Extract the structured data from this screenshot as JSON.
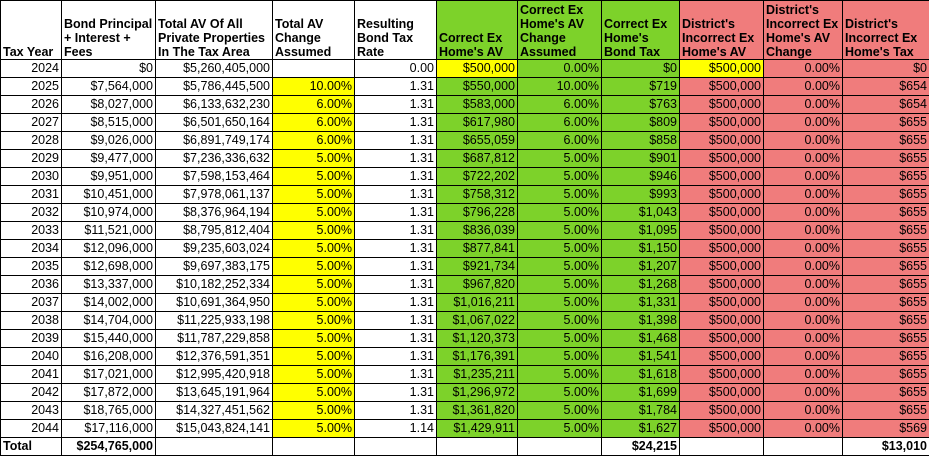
{
  "headers": [
    "Tax Year",
    "Bond Principal + Interest + Fees",
    "Total AV Of All Private Properties In The Tax Area",
    "Total AV Change Assumed",
    "Resulting Bond Tax Rate",
    "Correct Ex Home's AV",
    "Correct Ex Home's AV Change Assumed",
    "Correct Ex Home's Bond Tax",
    "District's Incorrect Ex Home's AV",
    "District's Incorrect Ex Home's AV Change",
    "District's Incorrect Ex Home's Tax"
  ],
  "rows": [
    [
      "2024",
      "$0",
      "$5,260,405,000",
      "",
      "0.00",
      "$500,000",
      "0.00%",
      "$0",
      "$500,000",
      "0.00%",
      "$0"
    ],
    [
      "2025",
      "$7,564,000",
      "$5,786,445,500",
      "10.00%",
      "1.31",
      "$550,000",
      "10.00%",
      "$719",
      "$500,000",
      "0.00%",
      "$654"
    ],
    [
      "2026",
      "$8,027,000",
      "$6,133,632,230",
      "6.00%",
      "1.31",
      "$583,000",
      "6.00%",
      "$763",
      "$500,000",
      "0.00%",
      "$654"
    ],
    [
      "2027",
      "$8,515,000",
      "$6,501,650,164",
      "6.00%",
      "1.31",
      "$617,980",
      "6.00%",
      "$809",
      "$500,000",
      "0.00%",
      "$655"
    ],
    [
      "2028",
      "$9,026,000",
      "$6,891,749,174",
      "6.00%",
      "1.31",
      "$655,059",
      "6.00%",
      "$858",
      "$500,000",
      "0.00%",
      "$655"
    ],
    [
      "2029",
      "$9,477,000",
      "$7,236,336,632",
      "5.00%",
      "1.31",
      "$687,812",
      "5.00%",
      "$901",
      "$500,000",
      "0.00%",
      "$655"
    ],
    [
      "2030",
      "$9,951,000",
      "$7,598,153,464",
      "5.00%",
      "1.31",
      "$722,202",
      "5.00%",
      "$946",
      "$500,000",
      "0.00%",
      "$655"
    ],
    [
      "2031",
      "$10,451,000",
      "$7,978,061,137",
      "5.00%",
      "1.31",
      "$758,312",
      "5.00%",
      "$993",
      "$500,000",
      "0.00%",
      "$655"
    ],
    [
      "2032",
      "$10,974,000",
      "$8,376,964,194",
      "5.00%",
      "1.31",
      "$796,228",
      "5.00%",
      "$1,043",
      "$500,000",
      "0.00%",
      "$655"
    ],
    [
      "2033",
      "$11,521,000",
      "$8,795,812,404",
      "5.00%",
      "1.31",
      "$836,039",
      "5.00%",
      "$1,095",
      "$500,000",
      "0.00%",
      "$655"
    ],
    [
      "2034",
      "$12,096,000",
      "$9,235,603,024",
      "5.00%",
      "1.31",
      "$877,841",
      "5.00%",
      "$1,150",
      "$500,000",
      "0.00%",
      "$655"
    ],
    [
      "2035",
      "$12,698,000",
      "$9,697,383,175",
      "5.00%",
      "1.31",
      "$921,734",
      "5.00%",
      "$1,207",
      "$500,000",
      "0.00%",
      "$655"
    ],
    [
      "2036",
      "$13,337,000",
      "$10,182,252,334",
      "5.00%",
      "1.31",
      "$967,820",
      "5.00%",
      "$1,268",
      "$500,000",
      "0.00%",
      "$655"
    ],
    [
      "2037",
      "$14,002,000",
      "$10,691,364,950",
      "5.00%",
      "1.31",
      "$1,016,211",
      "5.00%",
      "$1,331",
      "$500,000",
      "0.00%",
      "$655"
    ],
    [
      "2038",
      "$14,704,000",
      "$11,225,933,198",
      "5.00%",
      "1.31",
      "$1,067,022",
      "5.00%",
      "$1,398",
      "$500,000",
      "0.00%",
      "$655"
    ],
    [
      "2039",
      "$15,440,000",
      "$11,787,229,858",
      "5.00%",
      "1.31",
      "$1,120,373",
      "5.00%",
      "$1,468",
      "$500,000",
      "0.00%",
      "$655"
    ],
    [
      "2040",
      "$16,208,000",
      "$12,376,591,351",
      "5.00%",
      "1.31",
      "$1,176,391",
      "5.00%",
      "$1,541",
      "$500,000",
      "0.00%",
      "$655"
    ],
    [
      "2041",
      "$17,021,000",
      "$12,995,420,918",
      "5.00%",
      "1.31",
      "$1,235,211",
      "5.00%",
      "$1,618",
      "$500,000",
      "0.00%",
      "$655"
    ],
    [
      "2042",
      "$17,872,000",
      "$13,645,191,964",
      "5.00%",
      "1.31",
      "$1,296,972",
      "5.00%",
      "$1,699",
      "$500,000",
      "0.00%",
      "$655"
    ],
    [
      "2043",
      "$18,765,000",
      "$14,327,451,562",
      "5.00%",
      "1.31",
      "$1,361,820",
      "5.00%",
      "$1,784",
      "$500,000",
      "0.00%",
      "$655"
    ],
    [
      "2044",
      "$17,116,000",
      "$15,043,824,141",
      "5.00%",
      "1.14",
      "$1,429,911",
      "5.00%",
      "$1,627",
      "$500,000",
      "0.00%",
      "$569"
    ]
  ],
  "total": [
    "Total",
    "$254,765,000",
    "",
    "",
    "",
    "",
    "",
    "$24,215",
    "",
    "",
    "$13,010"
  ],
  "colors": {
    "yellow": "#ffff00",
    "green": "#7dd22a",
    "red": "#f07c7c"
  }
}
